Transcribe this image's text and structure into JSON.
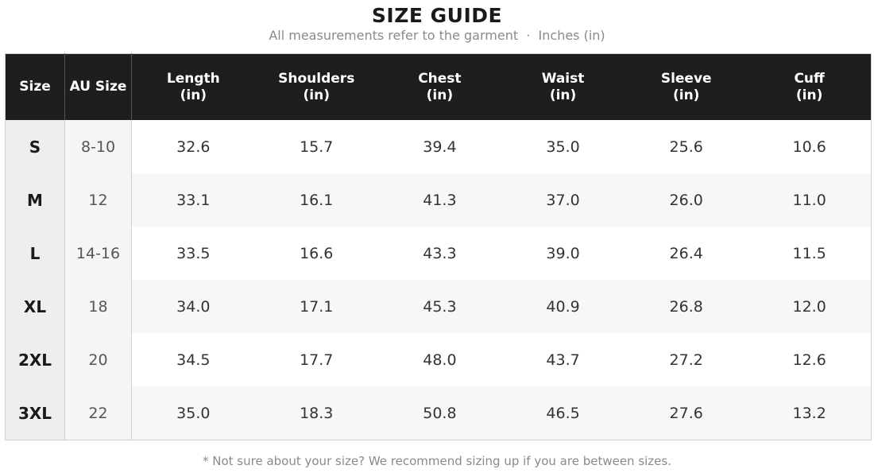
{
  "header": {
    "title": "SIZE GUIDE",
    "subtitle": "All measurements refer to the garment  ·  Inches (in)"
  },
  "table": {
    "columns": [
      "Size",
      "AU Size",
      "Length\n(in)",
      "Shoulders\n(in)",
      "Chest\n(in)",
      "Waist\n(in)",
      "Sleeve\n(in)",
      "Cuff\n(in)"
    ],
    "rows": [
      [
        "S",
        "8-10",
        "32.6",
        "15.7",
        "39.4",
        "35.0",
        "25.6",
        "10.6"
      ],
      [
        "M",
        "12",
        "33.1",
        "16.1",
        "41.3",
        "37.0",
        "26.0",
        "11.0"
      ],
      [
        "L",
        "14-16",
        "33.5",
        "16.6",
        "43.3",
        "39.0",
        "26.4",
        "11.5"
      ],
      [
        "XL",
        "18",
        "34.0",
        "17.1",
        "45.3",
        "40.9",
        "26.8",
        "12.0"
      ],
      [
        "2XL",
        "20",
        "34.5",
        "17.7",
        "48.0",
        "43.7",
        "27.2",
        "12.6"
      ],
      [
        "3XL",
        "22",
        "35.0",
        "18.3",
        "50.8",
        "46.5",
        "27.6",
        "13.2"
      ]
    ]
  },
  "footnote": "* Not sure about your size? We recommend sizing up if you are between sizes."
}
